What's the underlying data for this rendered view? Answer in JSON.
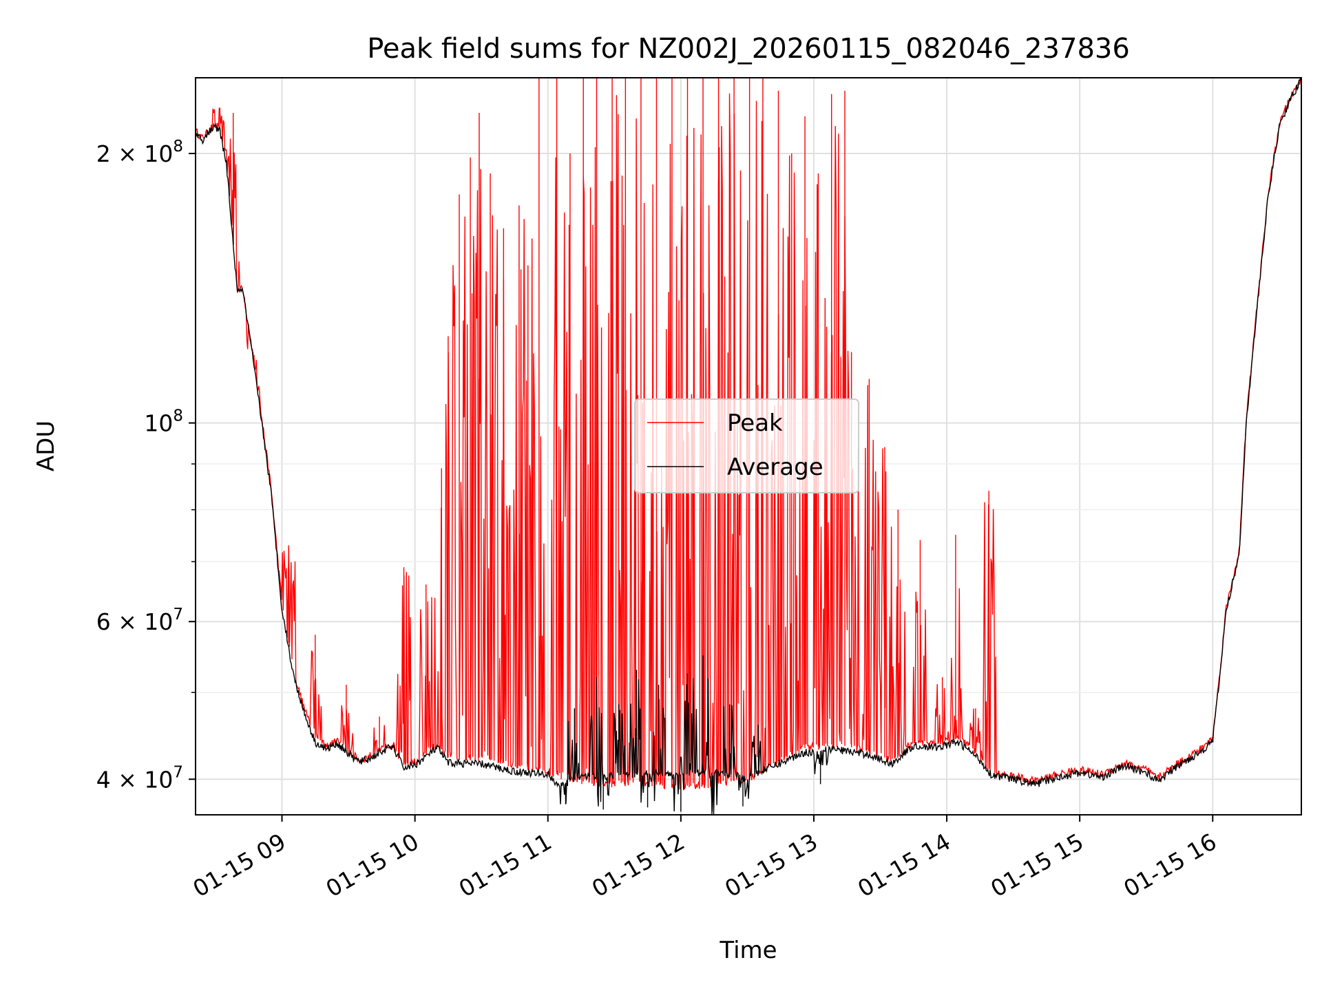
{
  "chart_data": {
    "type": "line",
    "title": "Peak field sums for NZ002J_20260115_082046_237836",
    "xlabel": "Time",
    "ylabel": "ADU",
    "yscale": "log",
    "xlim": [
      "2026-01-15T08:21",
      "2026-01-15T16:40"
    ],
    "ylim": [
      36500000,
      243000000
    ],
    "grid": true,
    "legend_position": "center",
    "x_ticks": [
      {
        "time": "2026-01-15T09:00",
        "label": "01-15 09"
      },
      {
        "time": "2026-01-15T10:00",
        "label": "01-15 10"
      },
      {
        "time": "2026-01-15T11:00",
        "label": "01-15 11"
      },
      {
        "time": "2026-01-15T12:00",
        "label": "01-15 12"
      },
      {
        "time": "2026-01-15T13:00",
        "label": "01-15 13"
      },
      {
        "time": "2026-01-15T14:00",
        "label": "01-15 14"
      },
      {
        "time": "2026-01-15T15:00",
        "label": "01-15 15"
      },
      {
        "time": "2026-01-15T16:00",
        "label": "01-15 16"
      }
    ],
    "y_ticks": [
      {
        "value": 40000000,
        "mantissa": "4",
        "exponent": "7"
      },
      {
        "value": 60000000,
        "mantissa": "6",
        "exponent": "7"
      },
      {
        "value": 100000000,
        "mantissa": "",
        "exponent": "8"
      },
      {
        "value": 200000000,
        "mantissa": "2",
        "exponent": "8"
      }
    ],
    "y_minor_ticks": [
      50000000,
      70000000,
      80000000,
      90000000
    ],
    "series": [
      {
        "name": "Peak",
        "color": "#ff0000",
        "baseline": [
          [
            "2026-01-15T08:21",
            212000000
          ],
          [
            "2026-01-15T08:24",
            208000000
          ],
          [
            "2026-01-15T08:29",
            215000000
          ],
          [
            "2026-01-15T08:32",
            213000000
          ],
          [
            "2026-01-15T08:35",
            195000000
          ],
          [
            "2026-01-15T08:38",
            160000000
          ],
          [
            "2026-01-15T08:40",
            140000000
          ],
          [
            "2026-01-15T08:42",
            143000000
          ],
          [
            "2026-01-15T08:45",
            128000000
          ],
          [
            "2026-01-15T08:50",
            105000000
          ],
          [
            "2026-01-15T08:55",
            85000000
          ],
          [
            "2026-01-15T09:00",
            63000000
          ],
          [
            "2026-01-15T09:05",
            53000000
          ],
          [
            "2026-01-15T09:10",
            48000000
          ],
          [
            "2026-01-15T09:15",
            44500000
          ],
          [
            "2026-01-15T09:20",
            43500000
          ],
          [
            "2026-01-15T09:25",
            44200000
          ],
          [
            "2026-01-15T09:30",
            43000000
          ],
          [
            "2026-01-15T09:35",
            42000000
          ],
          [
            "2026-01-15T09:40",
            42500000
          ],
          [
            "2026-01-15T09:45",
            43300000
          ],
          [
            "2026-01-15T09:50",
            43800000
          ],
          [
            "2026-01-15T09:55",
            41500000
          ],
          [
            "2026-01-15T10:00",
            41800000
          ],
          [
            "2026-01-15T10:05",
            42800000
          ],
          [
            "2026-01-15T10:10",
            43800000
          ],
          [
            "2026-01-15T10:15",
            42300000
          ],
          [
            "2026-01-15T10:30",
            42300000
          ],
          [
            "2026-01-15T10:45",
            41500000
          ],
          [
            "2026-01-15T11:00",
            40800000
          ],
          [
            "2026-01-15T11:15",
            39800000
          ],
          [
            "2026-01-15T11:30",
            39500000
          ],
          [
            "2026-01-15T11:45",
            39500000
          ],
          [
            "2026-01-15T12:00",
            39300000
          ],
          [
            "2026-01-15T12:15",
            39500000
          ],
          [
            "2026-01-15T12:30",
            40000000
          ],
          [
            "2026-01-15T12:45",
            42000000
          ],
          [
            "2026-01-15T12:55",
            43300000
          ],
          [
            "2026-01-15T13:10",
            43800000
          ],
          [
            "2026-01-15T13:25",
            43000000
          ],
          [
            "2026-01-15T13:35",
            42000000
          ],
          [
            "2026-01-15T13:45",
            44000000
          ],
          [
            "2026-01-15T13:55",
            43800000
          ],
          [
            "2026-01-15T14:05",
            44500000
          ],
          [
            "2026-01-15T14:10",
            43500000
          ],
          [
            "2026-01-15T14:15",
            42300000
          ],
          [
            "2026-01-15T14:20",
            40800000
          ],
          [
            "2026-01-15T14:30",
            40300000
          ],
          [
            "2026-01-15T14:40",
            39800000
          ],
          [
            "2026-01-15T14:50",
            40500000
          ],
          [
            "2026-01-15T15:00",
            41000000
          ],
          [
            "2026-01-15T15:10",
            40500000
          ],
          [
            "2026-01-15T15:20",
            41700000
          ],
          [
            "2026-01-15T15:30",
            41000000
          ],
          [
            "2026-01-15T15:35",
            40100000
          ],
          [
            "2026-01-15T15:45",
            41800000
          ],
          [
            "2026-01-15T15:55",
            43300000
          ],
          [
            "2026-01-15T16:00",
            44500000
          ],
          [
            "2026-01-15T16:03",
            52000000
          ],
          [
            "2026-01-15T16:06",
            62000000
          ],
          [
            "2026-01-15T16:12",
            72000000
          ],
          [
            "2026-01-15T16:15",
            100000000
          ],
          [
            "2026-01-15T16:20",
            135000000
          ],
          [
            "2026-01-15T16:25",
            180000000
          ],
          [
            "2026-01-15T16:30",
            215000000
          ],
          [
            "2026-01-15T16:34",
            228000000
          ],
          [
            "2026-01-15T16:40",
            243000000
          ]
        ],
        "spikes": [
          [
            "2026-01-15T08:32",
            225000000
          ],
          [
            "2026-01-15T08:38",
            222000000
          ],
          [
            "2026-01-15T08:47",
            120000000
          ],
          [
            "2026-01-15T09:03",
            73000000
          ],
          [
            "2026-01-15T09:15",
            58000000
          ],
          [
            "2026-01-15T09:29",
            51000000
          ],
          [
            "2026-01-15T09:44",
            47000000
          ],
          [
            "2026-01-15T09:55",
            69000000
          ],
          [
            "2026-01-15T10:05",
            66000000
          ],
          [
            "2026-01-15T10:12",
            89000000
          ],
          [
            "2026-01-15T10:15",
            125000000
          ],
          [
            "2026-01-15T10:20",
            180000000
          ],
          [
            "2026-01-15T10:25",
            198000000
          ],
          [
            "2026-01-15T10:29",
            222000000
          ],
          [
            "2026-01-15T10:34",
            190000000
          ],
          [
            "2026-01-15T10:40",
            165000000
          ],
          [
            "2026-01-15T10:47",
            175000000
          ],
          [
            "2026-01-15T10:51",
            150000000
          ],
          [
            "2026-01-15T10:56",
            243000000
          ],
          [
            "2026-01-15T11:04",
            243000000
          ],
          [
            "2026-01-15T11:10",
            200000000
          ],
          [
            "2026-01-15T11:16",
            243000000
          ],
          [
            "2026-01-15T11:22",
            243000000
          ],
          [
            "2026-01-15T11:29",
            243000000
          ],
          [
            "2026-01-15T11:35",
            243000000
          ],
          [
            "2026-01-15T11:42",
            243000000
          ],
          [
            "2026-01-15T11:49",
            243000000
          ],
          [
            "2026-01-15T11:56",
            243000000
          ],
          [
            "2026-01-15T12:03",
            243000000
          ],
          [
            "2026-01-15T12:10",
            243000000
          ],
          [
            "2026-01-15T12:17",
            243000000
          ],
          [
            "2026-01-15T12:24",
            243000000
          ],
          [
            "2026-01-15T12:31",
            243000000
          ],
          [
            "2026-01-15T12:37",
            243000000
          ],
          [
            "2026-01-15T12:44",
            235000000
          ],
          [
            "2026-01-15T12:50",
            200000000
          ],
          [
            "2026-01-15T12:56",
            220000000
          ],
          [
            "2026-01-15T13:02",
            190000000
          ],
          [
            "2026-01-15T13:08",
            233000000
          ],
          [
            "2026-01-15T13:14",
            235000000
          ],
          [
            "2026-01-15T13:17",
            120000000
          ],
          [
            "2026-01-15T13:25",
            112000000
          ],
          [
            "2026-01-15T13:32",
            94000000
          ],
          [
            "2026-01-15T13:38",
            80000000
          ],
          [
            "2026-01-15T13:48",
            74000000
          ],
          [
            "2026-01-15T13:58",
            52000000
          ],
          [
            "2026-01-15T14:04",
            75000000
          ],
          [
            "2026-01-15T14:13",
            48000000
          ],
          [
            "2026-01-15T14:19",
            84000000
          ]
        ]
      },
      {
        "name": "Average",
        "color": "#000000",
        "baseline": [
          [
            "2026-01-15T08:21",
            211000000
          ],
          [
            "2026-01-15T08:24",
            207000000
          ],
          [
            "2026-01-15T08:29",
            214000000
          ],
          [
            "2026-01-15T08:32",
            212000000
          ],
          [
            "2026-01-15T08:35",
            194000000
          ],
          [
            "2026-01-15T08:38",
            158000000
          ],
          [
            "2026-01-15T08:40",
            139000000
          ],
          [
            "2026-01-15T08:42",
            142000000
          ],
          [
            "2026-01-15T08:45",
            127000000
          ],
          [
            "2026-01-15T08:50",
            104000000
          ],
          [
            "2026-01-15T08:55",
            84000000
          ],
          [
            "2026-01-15T09:00",
            62000000
          ],
          [
            "2026-01-15T09:05",
            52500000
          ],
          [
            "2026-01-15T09:10",
            47500000
          ],
          [
            "2026-01-15T09:15",
            44000000
          ],
          [
            "2026-01-15T09:20",
            43200000
          ],
          [
            "2026-01-15T09:25",
            43900000
          ],
          [
            "2026-01-15T09:30",
            42700000
          ],
          [
            "2026-01-15T09:35",
            41800000
          ],
          [
            "2026-01-15T09:40",
            42200000
          ],
          [
            "2026-01-15T09:45",
            43000000
          ],
          [
            "2026-01-15T09:50",
            43500000
          ],
          [
            "2026-01-15T09:55",
            41200000
          ],
          [
            "2026-01-15T10:00",
            41500000
          ],
          [
            "2026-01-15T10:05",
            42400000
          ],
          [
            "2026-01-15T10:10",
            43400000
          ],
          [
            "2026-01-15T10:15",
            41700000
          ],
          [
            "2026-01-15T10:30",
            41600000
          ],
          [
            "2026-01-15T10:45",
            40800000
          ],
          [
            "2026-01-15T11:00",
            40500000
          ],
          [
            "2026-01-15T11:05",
            39400000
          ],
          [
            "2026-01-15T11:15",
            40200000
          ],
          [
            "2026-01-15T11:30",
            40400000
          ],
          [
            "2026-01-15T11:45",
            40600000
          ],
          [
            "2026-01-15T12:00",
            40500000
          ],
          [
            "2026-01-15T12:15",
            40700000
          ],
          [
            "2026-01-15T12:30",
            40200000
          ],
          [
            "2026-01-15T12:45",
            41700000
          ],
          [
            "2026-01-15T12:55",
            42800000
          ],
          [
            "2026-01-15T13:10",
            43200000
          ],
          [
            "2026-01-15T13:25",
            42600000
          ],
          [
            "2026-01-15T13:35",
            41600000
          ],
          [
            "2026-01-15T13:45",
            43600000
          ],
          [
            "2026-01-15T13:55",
            43400000
          ],
          [
            "2026-01-15T14:05",
            44000000
          ],
          [
            "2026-01-15T14:10",
            43100000
          ],
          [
            "2026-01-15T14:15",
            42000000
          ],
          [
            "2026-01-15T14:20",
            40500000
          ],
          [
            "2026-01-15T14:30",
            40000000
          ],
          [
            "2026-01-15T14:40",
            39500000
          ],
          [
            "2026-01-15T14:50",
            40200000
          ],
          [
            "2026-01-15T15:00",
            40700000
          ],
          [
            "2026-01-15T15:10",
            40200000
          ],
          [
            "2026-01-15T15:20",
            41400000
          ],
          [
            "2026-01-15T15:30",
            40700000
          ],
          [
            "2026-01-15T15:35",
            39800000
          ],
          [
            "2026-01-15T15:45",
            41500000
          ],
          [
            "2026-01-15T15:55",
            43000000
          ],
          [
            "2026-01-15T16:00",
            44200000
          ],
          [
            "2026-01-15T16:03",
            51500000
          ],
          [
            "2026-01-15T16:06",
            61500000
          ],
          [
            "2026-01-15T16:12",
            71500000
          ],
          [
            "2026-01-15T16:15",
            99000000
          ],
          [
            "2026-01-15T16:20",
            134000000
          ],
          [
            "2026-01-15T16:25",
            179000000
          ],
          [
            "2026-01-15T16:30",
            214000000
          ],
          [
            "2026-01-15T16:34",
            227000000
          ],
          [
            "2026-01-15T16:40",
            242000000
          ]
        ],
        "spikes": [
          [
            "2026-01-15T11:12",
            48000000
          ],
          [
            "2026-01-15T11:22",
            52000000
          ],
          [
            "2026-01-15T11:32",
            48500000
          ],
          [
            "2026-01-15T11:40",
            53000000
          ],
          [
            "2026-01-15T11:50",
            51000000
          ],
          [
            "2026-01-15T12:03",
            52500000
          ],
          [
            "2026-01-15T12:10",
            55000000
          ],
          [
            "2026-01-15T12:22",
            48500000
          ],
          [
            "2026-01-15T12:35",
            46000000
          ],
          [
            "2026-01-15T11:08",
            37500000
          ],
          [
            "2026-01-15T11:25",
            37000000
          ],
          [
            "2026-01-15T11:45",
            37200000
          ],
          [
            "2026-01-15T12:00",
            36800000
          ],
          [
            "2026-01-15T12:14",
            36500000
          ],
          [
            "2026-01-15T12:28",
            37300000
          ],
          [
            "2026-01-15T13:03",
            39500000
          ]
        ]
      }
    ]
  }
}
